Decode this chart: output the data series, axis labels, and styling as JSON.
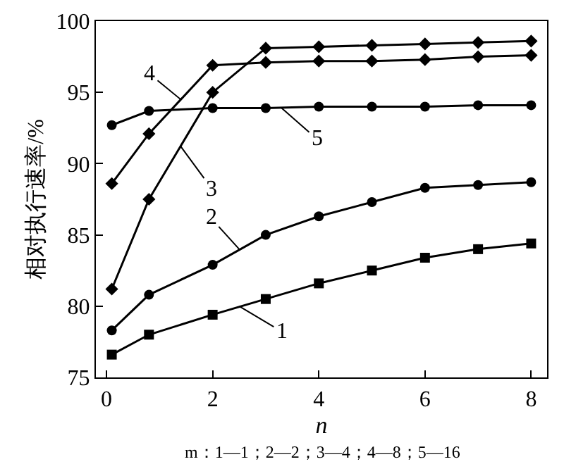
{
  "chart_data": {
    "type": "line",
    "xlabel": "n",
    "ylabel": "相对执行速率/%",
    "xlim": [
      -0.2,
      8.3
    ],
    "xticks": [
      0,
      2,
      4,
      6,
      8
    ],
    "ylim": [
      75,
      100
    ],
    "yticks": [
      75,
      80,
      85,
      90,
      95,
      100
    ],
    "line_style": "solid",
    "series": [
      {
        "color": "#000000",
        "marker": "square",
        "x": [
          0.1,
          0.8,
          2,
          3,
          4,
          5,
          6,
          7,
          8
        ],
        "values": [
          76.6,
          78.0,
          79.4,
          80.5,
          81.6,
          82.5,
          83.4,
          84.0,
          84.4
        ]
      },
      {
        "color": "#000000",
        "marker": "circle",
        "x": [
          0.1,
          0.8,
          2,
          3,
          4,
          5,
          6,
          7,
          8
        ],
        "values": [
          78.3,
          80.8,
          82.9,
          85.0,
          86.3,
          87.3,
          88.3,
          88.5,
          88.7
        ]
      },
      {
        "color": "#000000",
        "marker": "diamond",
        "x": [
          0.1,
          0.8,
          2,
          3,
          4,
          5,
          6,
          7,
          8
        ],
        "values": [
          81.2,
          87.5,
          95.0,
          98.1,
          98.2,
          98.3,
          98.4,
          98.5,
          98.6
        ]
      },
      {
        "color": "#000000",
        "marker": "diamond",
        "x": [
          0.1,
          0.8,
          2,
          3,
          4,
          5,
          6,
          7,
          8
        ],
        "values": [
          88.6,
          92.1,
          96.9,
          97.1,
          97.2,
          97.2,
          97.3,
          97.5,
          97.6
        ]
      },
      {
        "color": "#000000",
        "marker": "circle",
        "x": [
          0.1,
          0.8,
          2,
          3,
          4,
          5,
          6,
          7,
          8
        ],
        "values": [
          92.7,
          93.7,
          93.9,
          93.9,
          94.0,
          94.0,
          94.0,
          94.1,
          94.1
        ]
      }
    ],
    "annotations": [
      {
        "text": "1",
        "x": 2.5,
        "y": 80.0
      },
      {
        "text": "2",
        "x": 2.5,
        "y": 84.0
      },
      {
        "text": "3",
        "x": 1.4,
        "y": 91.2
      },
      {
        "text": "4",
        "x": 1.4,
        "y": 94.5
      },
      {
        "text": "5",
        "x": 3.3,
        "y": 93.9
      },
      "m：1—1；2—2；3—4；4—8；5—16"
    ]
  }
}
